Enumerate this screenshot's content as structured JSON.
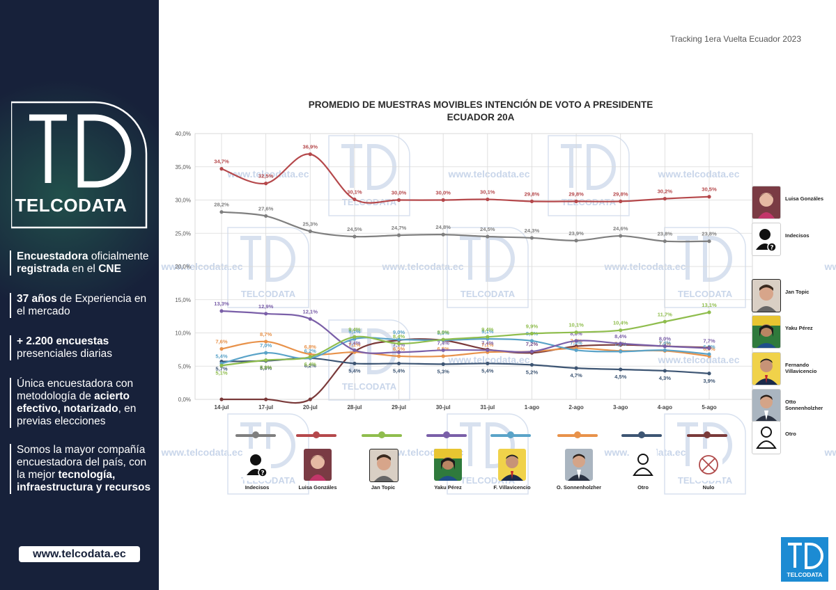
{
  "header": {
    "tracking_label": "Tracking 1era Vuelta Ecuador 2023"
  },
  "sidebar": {
    "brand": "TELCODATA",
    "points": [
      {
        "bold": "Encuestadora",
        "text": " oficialmente ",
        "bold2": "registrada",
        "text2": " en el ",
        "bold3": "CNE"
      },
      {
        "bold": "37 años",
        "text": " de Experiencia en el mercado",
        "bold2": "",
        "text2": "",
        "bold3": ""
      },
      {
        "bold": "+ 2.200 encuestas",
        "text": " presenciales diarias",
        "bold2": "",
        "text2": "",
        "bold3": ""
      },
      {
        "bold": "",
        "text": "Única encuestadora con metodología de ",
        "bold2": "acierto efectivo, notarizado",
        "text2": ", en previas elecciones",
        "bold3": ""
      },
      {
        "bold": "",
        "text": "Somos la mayor compañía encuestadora del país, con la mejor ",
        "bold2": "tecnología, infraestructura y recursos",
        "text2": "",
        "bold3": ""
      }
    ],
    "website": "www.telcodata.ec"
  },
  "watermark": {
    "url": "www.telcodata.ec",
    "brand": "TELCODATA"
  },
  "chart_data": {
    "type": "line",
    "title": "PROMEDIO DE MUESTRAS MOVIBLES INTENCIÓN DE VOTO A PRESIDENTE",
    "subtitle": "ECUADOR 20A",
    "categories": [
      "14-jul",
      "17-jul",
      "20-jul",
      "28-jul",
      "29-jul",
      "30-jul",
      "31-jul",
      "1-ago",
      "2-ago",
      "3-ago",
      "4-ago",
      "5-ago"
    ],
    "y_ticks": [
      "0,0%",
      "5,0%",
      "10,0%",
      "15,0%",
      "20,0%",
      "25,0%",
      "30,0%",
      "35,0%",
      "40,0%"
    ],
    "ylim": [
      0,
      40
    ],
    "grid": true,
    "series": [
      {
        "name": "Indecisos",
        "color": "#7f7f7f",
        "values": [
          28.2,
          27.6,
          25.3,
          24.5,
          24.7,
          24.8,
          24.5,
          24.3,
          23.9,
          24.6,
          23.8,
          23.8
        ],
        "labels": [
          "28,2%",
          "27,6%",
          "25,3%",
          "24,5%",
          "24,7%",
          "24,8%",
          "24,5%",
          "24,3%",
          "23,9%",
          "24,6%",
          "23,8%",
          "23,8%"
        ]
      },
      {
        "name": "Luisa Gonzáles",
        "color": "#b5484b",
        "values": [
          34.7,
          32.5,
          36.9,
          30.1,
          30.0,
          30.0,
          30.1,
          29.8,
          29.8,
          29.8,
          30.2,
          30.5
        ],
        "labels": [
          "34,7%",
          "32,5%",
          "36,9%",
          "30,1%",
          "30,0%",
          "30,0%",
          "30,1%",
          "29,8%",
          "29,8%",
          "29,8%",
          "30,2%",
          "30,5%"
        ]
      },
      {
        "name": "Jan Topic",
        "color": "#8fbd4d",
        "values": [
          5.1,
          5.9,
          6.4,
          9.4,
          8.4,
          9.0,
          9.4,
          9.9,
          10.1,
          10.4,
          11.7,
          13.1
        ],
        "labels": [
          "5,1%",
          "5,9%",
          "6,4%",
          "9,4%",
          "8,4%",
          "9,0%",
          "9,4%",
          "9,9%",
          "10,1%",
          "10,4%",
          "11,7%",
          "13,1%"
        ]
      },
      {
        "name": "Yaku Pérez",
        "color": "#7a5fa8",
        "values": [
          13.3,
          12.9,
          12.1,
          7.4,
          7.1,
          7.4,
          7.4,
          7.2,
          8.8,
          8.4,
          8.0,
          7.7
        ],
        "labels": [
          "13,3%",
          "12,9%",
          "12,1%",
          "7,4%",
          "7,1%",
          "7,4%",
          "7,4%",
          "7,2%",
          "8,8%",
          "8,4%",
          "8,0%",
          "7,7%"
        ]
      },
      {
        "name": "F. Villavicencio",
        "color": "#5aa3c8",
        "values": [
          5.4,
          7.0,
          6.2,
          9.1,
          9.0,
          8.9,
          9.1,
          8.8,
          7.4,
          7.2,
          7.4,
          6.8
        ],
        "labels": [
          "5,4%",
          "7,0%",
          "6,2%",
          "9,1%",
          "9,0%",
          "8,9%",
          "9,1%",
          "8,8%",
          "7,4%",
          "7,2%",
          "7,4%",
          "6,8%"
        ]
      },
      {
        "name": "O. Sonnenholzher",
        "color": "#e8924a",
        "values": [
          7.6,
          8.7,
          6.8,
          7.1,
          6.5,
          6.5,
          7.1,
          7.2,
          7.7,
          7.3,
          7.3,
          6.5
        ],
        "labels": [
          "7,6%",
          "8,7%",
          "6,8%",
          "7,1%",
          "6,5%",
          "6,5%",
          "7,1%",
          "7,2%",
          "7,7%",
          "7,3%",
          "7,3%",
          "6,5%"
        ]
      },
      {
        "name": "Otro",
        "color": "#3d5573",
        "values": [
          5.7,
          5.8,
          6.2,
          5.4,
          5.4,
          5.3,
          5.4,
          5.2,
          4.7,
          4.5,
          4.3,
          3.9
        ],
        "labels": [
          "5,7%",
          "5,8%",
          "6,2%",
          "5,4%",
          "5,4%",
          "5,3%",
          "5,4%",
          "5,2%",
          "4,7%",
          "4,5%",
          "4,3%",
          "3,9%"
        ]
      },
      {
        "name": "Nulo",
        "color": "#7a3a3a",
        "values": [
          0.0,
          0.0,
          0.0,
          7.2,
          8.9,
          8.9,
          7.5,
          7.0,
          8.0,
          8.2,
          8.0,
          7.8
        ],
        "labels": [
          "",
          "",
          "",
          "",
          "",
          "",
          "",
          "",
          "",
          "",
          "",
          ""
        ]
      }
    ]
  },
  "side_legend": [
    {
      "name": "Luisa Gonzáles",
      "icon": "luisa-photo"
    },
    {
      "name": "Indecisos",
      "icon": "user-question-icon"
    },
    {
      "name": "Jan Topic",
      "icon": "jan-photo"
    },
    {
      "name": "Yaku Pérez",
      "icon": "yaku-photo"
    },
    {
      "name": "Fernando Villavicencio",
      "icon": "fernando-photo"
    },
    {
      "name": "Otto Sonnenholzher",
      "icon": "otto-photo"
    },
    {
      "name": "Otro",
      "icon": "user-outline-icon"
    }
  ],
  "corner_logo": {
    "brand": "TELCODATA"
  }
}
